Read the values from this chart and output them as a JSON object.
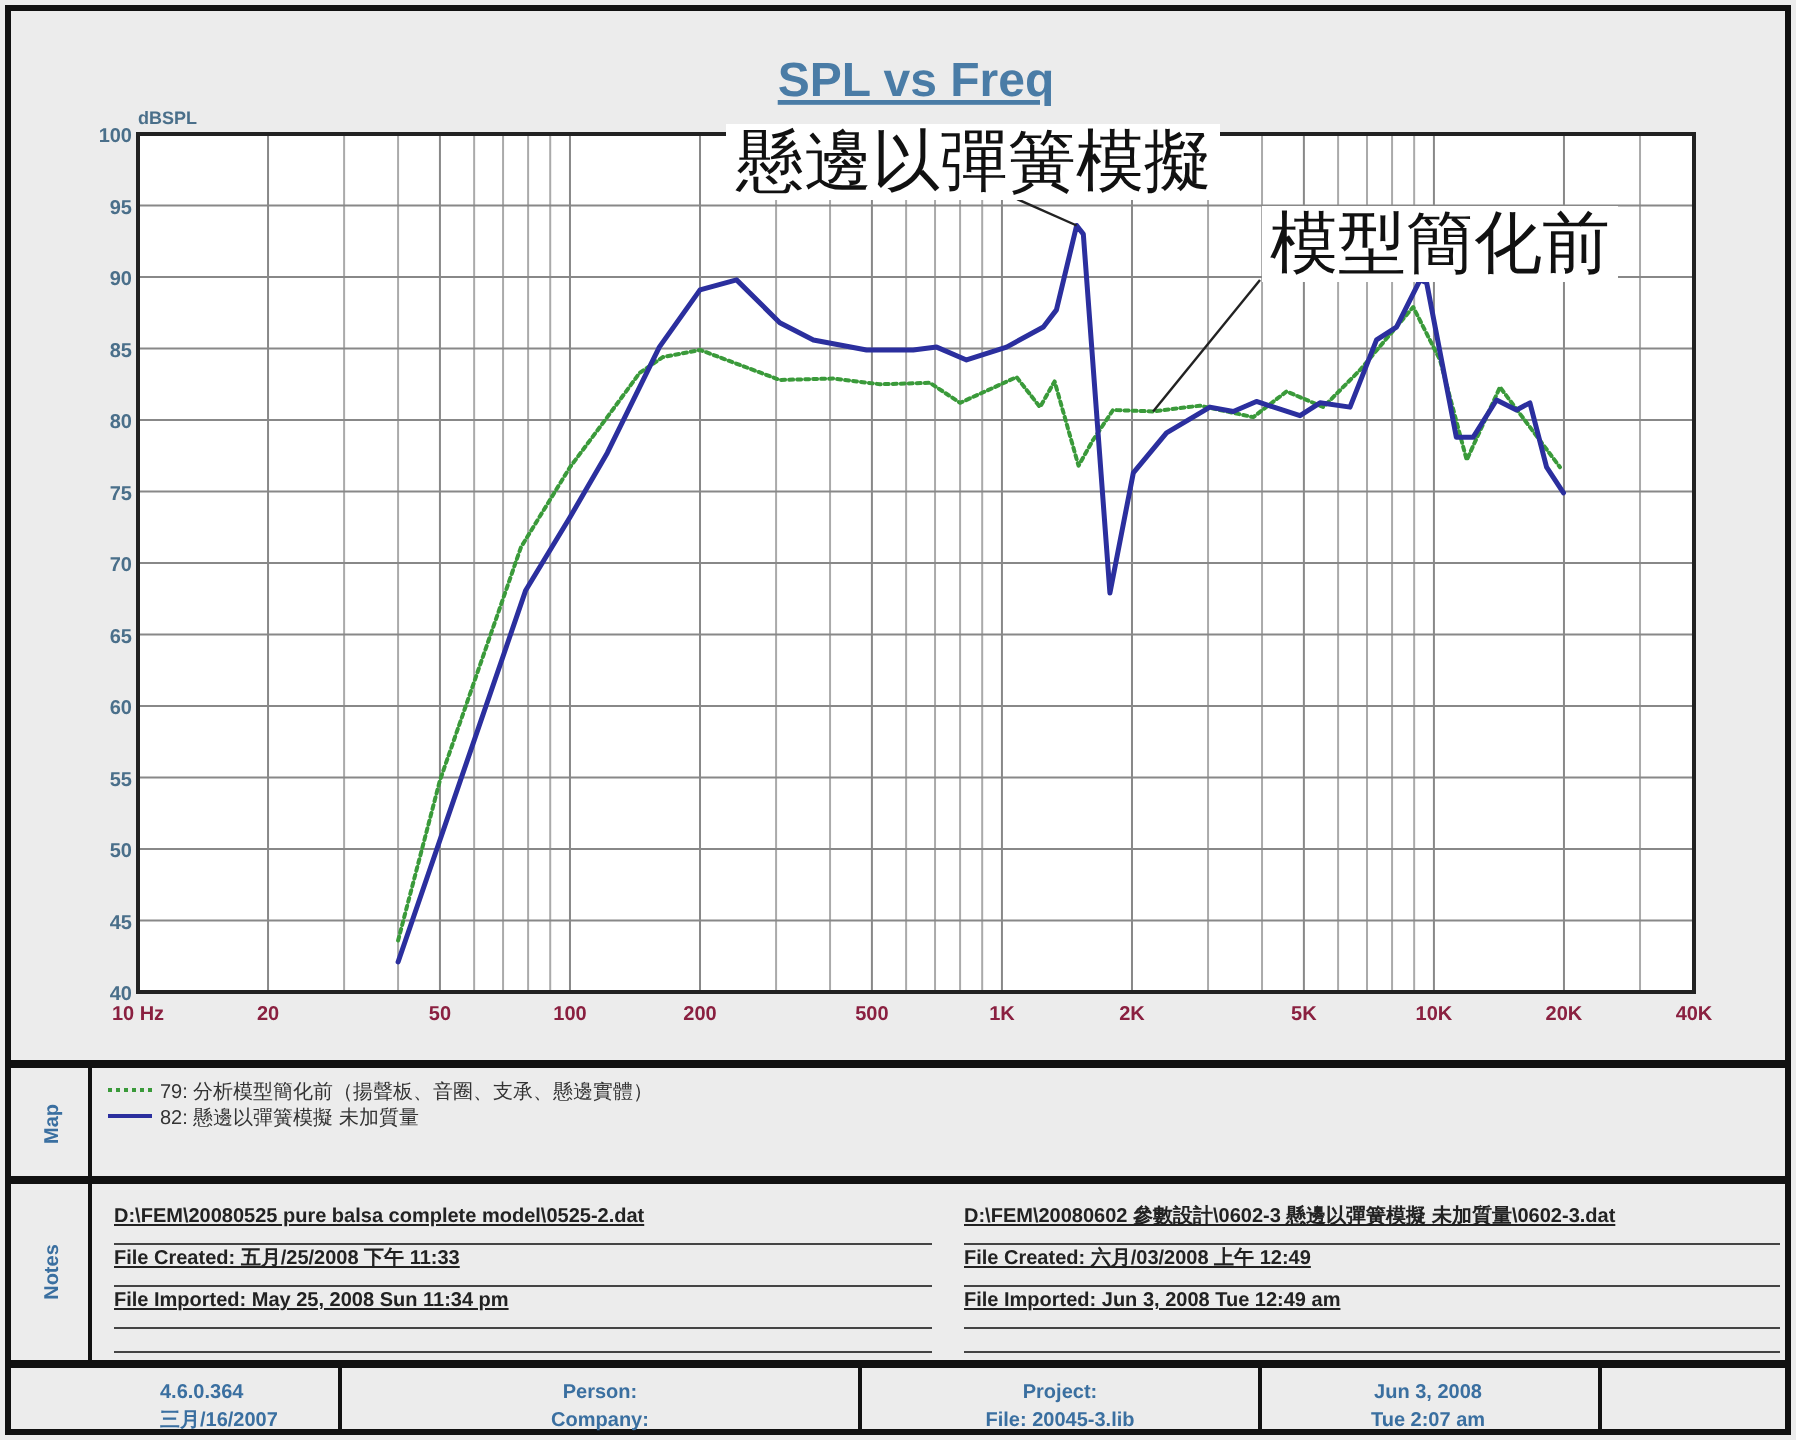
{
  "chart_data": {
    "type": "line",
    "title": "SPL vs Freq",
    "ylabel": "dBSPL",
    "log": "x",
    "grid": true,
    "legend": "bottom",
    "xlim": [
      10,
      40000
    ],
    "xticks": [
      {
        "value": 10,
        "label": "10 Hz"
      },
      20,
      50,
      100,
      200,
      500,
      {
        "value": 1000,
        "label": "1K"
      },
      {
        "value": 2000,
        "label": "2K"
      },
      {
        "value": 5000,
        "label": "5K"
      },
      {
        "value": 10000,
        "label": "10K"
      },
      {
        "value": 20000,
        "label": "20K"
      },
      {
        "value": 40000,
        "label": "40K"
      }
    ],
    "ylim": [
      40,
      100
    ],
    "yticks": [
      40,
      45,
      50,
      55,
      60,
      65,
      70,
      75,
      80,
      85,
      90,
      95,
      100
    ],
    "series": [
      {
        "name": "79: 分析模型簡化前（揚聲板、音圈、支承、懸邊實體）",
        "color": "#3a9a3a",
        "line_style": "dotted",
        "x": [
          40,
          50,
          77,
          100,
          122,
          145,
          164,
          200,
          306,
          407,
          522,
          681,
          800,
          1081,
          1225,
          1324,
          1504,
          1625,
          1808,
          2238,
          2871,
          3817,
          4560,
          5546,
          6745,
          8953,
          10330,
          11910,
          14220,
          19580
        ],
        "values": [
          43.6,
          54.8,
          71.1,
          76.7,
          80.2,
          83.3,
          84.4,
          84.9,
          82.8,
          82.9,
          82.5,
          82.6,
          81.2,
          83.0,
          80.9,
          82.7,
          76.8,
          78.6,
          80.7,
          80.6,
          81.0,
          80.2,
          82.0,
          80.9,
          83.5,
          87.9,
          84.2,
          77.2,
          82.3,
          76.7
        ]
      },
      {
        "name": "82: 懸邊以彈簧模擬 未加質量",
        "color": "#2b2f9e",
        "line_style": "solid",
        "x": [
          40,
          79,
          100,
          122,
          161,
          200,
          243,
          306,
          366,
          486,
          623,
          706,
          828,
          1025,
          1247,
          1337,
          1489,
          1543,
          1778,
          2014,
          2404,
          3030,
          3432,
          3882,
          4898,
          5448,
          6394,
          7365,
          8190,
          9290,
          9620,
          11270,
          12330,
          13960,
          15530,
          16680,
          18230,
          19950
        ],
        "values": [
          42.1,
          68.1,
          73.2,
          77.7,
          85.1,
          89.1,
          89.8,
          86.8,
          85.6,
          84.9,
          84.9,
          85.1,
          84.2,
          85.1,
          86.5,
          87.7,
          93.6,
          93.0,
          67.9,
          76.3,
          79.1,
          80.9,
          80.6,
          81.3,
          80.3,
          81.2,
          80.9,
          85.6,
          86.5,
          89.8,
          89.6,
          78.8,
          78.8,
          81.4,
          80.7,
          81.2,
          76.7,
          74.9
        ]
      }
    ],
    "annotations": [
      {
        "text": "懸邊以彈簧模擬",
        "x": 1489,
        "y": 93.6
      },
      {
        "text": "模型簡化前",
        "x": 2238,
        "y": 80.6
      },
      "Map",
      "Notes",
      "D:\\FEM\\20080525 pure balsa complete model\\0525-2.dat",
      "File Created: 五月/25/2008 下午 11:33",
      "File Imported: May 25, 2008  Sun 11:34 pm",
      "D:\\FEM\\20080602 參數設計\\0602-3 懸邊以彈簧模擬 未加質量\\0602-3.dat",
      "File Created: 六月/03/2008 上午 12:49",
      "File Imported: Jun  3, 2008  Tue 12:49 am",
      "4.6.0.364",
      "三月/16/2007",
      "Person:",
      "Company:",
      "Project:",
      "File: 20045-3.lib",
      "Jun 3, 2008",
      "Tue 2:07 am"
    ]
  }
}
